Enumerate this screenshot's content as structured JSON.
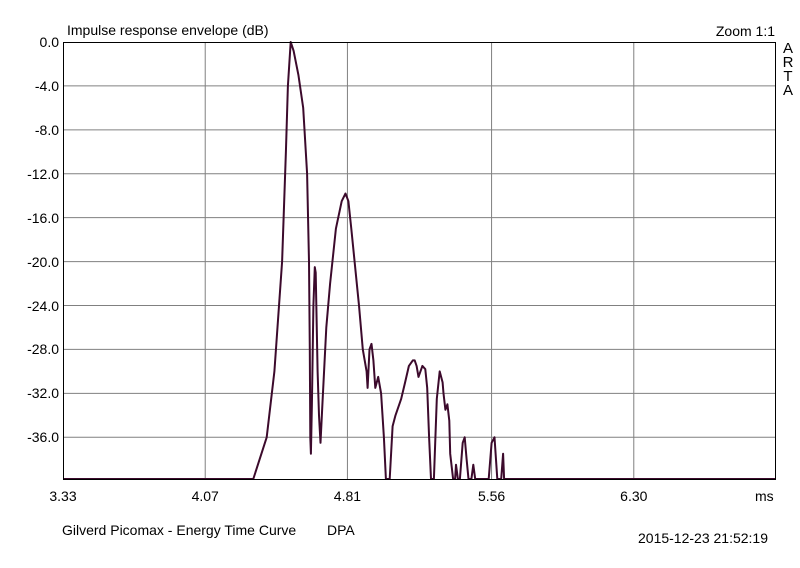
{
  "header": {
    "title": "Impulse response envelope (dB)",
    "zoom": "Zoom 1:1",
    "arta_letters": [
      "A",
      "R",
      "T",
      "A"
    ]
  },
  "footer": {
    "caption": "Gilverd Picomax - Energy Time Curve",
    "tag": "DPA",
    "timestamp": "2015-12-23  21:52:19"
  },
  "colors": {
    "curve": "#3c0a2c",
    "grid": "#808080",
    "frame": "#000000",
    "background": "#ffffff"
  },
  "chart_data": {
    "type": "line",
    "title": "Impulse response envelope (dB)",
    "xlabel": "ms",
    "ylabel": "",
    "xlim": [
      3.33,
      7.04
    ],
    "ylim": [
      -39.8,
      0.0
    ],
    "x_ticks": [
      "3.33",
      "4.07",
      "4.81",
      "5.56",
      "6.30"
    ],
    "x_tick_values": [
      3.33,
      4.07,
      4.81,
      5.56,
      6.3
    ],
    "x_unit": "ms",
    "y_ticks": [
      "0.0",
      "-4.0",
      "-8.0",
      "-12.0",
      "-16.0",
      "-20.0",
      "-24.0",
      "-28.0",
      "-32.0",
      "-36.0"
    ],
    "y_tick_values": [
      0,
      -4,
      -8,
      -12,
      -16,
      -20,
      -24,
      -28,
      -32,
      -36
    ],
    "grid": true,
    "series": [
      {
        "x": [
          3.33,
          4.32,
          4.39,
          4.43,
          4.47,
          4.49,
          4.5,
          4.515,
          4.53,
          4.555,
          4.58,
          4.6,
          4.61,
          4.614,
          4.617,
          4.62,
          4.625,
          4.633,
          4.64,
          4.645,
          4.655,
          4.662,
          4.67,
          4.68,
          4.7,
          4.72,
          4.75,
          4.78,
          4.8,
          4.815,
          4.83,
          4.87,
          4.89,
          4.91,
          4.915,
          4.925,
          4.935,
          4.945,
          4.955,
          4.97,
          4.985,
          5.0,
          5.01,
          5.02,
          5.03,
          5.045,
          5.06,
          5.07,
          5.09,
          5.11,
          5.13,
          5.15,
          5.16,
          5.17,
          5.18,
          5.2,
          5.215,
          5.225,
          5.235,
          5.245,
          5.26,
          5.275,
          5.29,
          5.305,
          5.31,
          5.32,
          5.33,
          5.34,
          5.345,
          5.36,
          5.37,
          5.375,
          5.385,
          5.395,
          5.41,
          5.42,
          5.43,
          5.44,
          5.455,
          5.465,
          5.475,
          5.485,
          5.49,
          5.5,
          5.51,
          5.52,
          5.53,
          5.545,
          5.56,
          5.575,
          5.59,
          5.6,
          5.61,
          5.62,
          5.625,
          5.635,
          5.645,
          5.655,
          5.665,
          5.675,
          5.69,
          5.7,
          5.705,
          5.715,
          5.72,
          5.73,
          5.745,
          5.755,
          5.76,
          5.77,
          5.78,
          6.04,
          6.045,
          6.05,
          6.055,
          6.06,
          7.04
        ],
        "y": [
          -39.8,
          -39.8,
          -36,
          -30,
          -20,
          -10,
          -4,
          0,
          -0.8,
          -3,
          -6,
          -12,
          -20,
          -28,
          -36,
          -37.5,
          -33,
          -24,
          -20.5,
          -21,
          -30,
          -34,
          -36.5,
          -33,
          -26,
          -22,
          -17,
          -14.5,
          -13.8,
          -14.5,
          -17,
          -24,
          -28,
          -30,
          -31.5,
          -28,
          -27.5,
          -29,
          -31.5,
          -30.5,
          -32,
          -36,
          -39.8,
          -39.8,
          -39.8,
          -35,
          -34,
          -33.5,
          -32.5,
          -31,
          -29.5,
          -29,
          -29,
          -29.5,
          -30.5,
          -29.5,
          -29.8,
          -31.5,
          -36,
          -39.8,
          -39.8,
          -32.5,
          -30,
          -31,
          -32,
          -33.5,
          -33,
          -34.5,
          -37.5,
          -39.8,
          -39.8,
          -38.5,
          -39.8,
          -39.8,
          -36.5,
          -36,
          -38,
          -39.8,
          -39.8,
          -38.5,
          -39.8,
          -39.8,
          -39.8,
          -39.8,
          -39.8,
          -39.8,
          -39.8,
          -39.8,
          -36.5,
          -36,
          -39.8,
          -39.8,
          -39.8,
          -37.5,
          -39.8,
          -39.8,
          -39.8,
          -39.8,
          -39.8,
          -39.8,
          -39.8,
          -39.8,
          -39.8,
          -39.8,
          -39.8,
          -39.8,
          -39.8,
          -39.8,
          -39.8,
          -39.8,
          -39.8,
          -39.8,
          -39.8,
          -39.8,
          -39.8,
          -39.8,
          -39.8
        ]
      }
    ]
  }
}
